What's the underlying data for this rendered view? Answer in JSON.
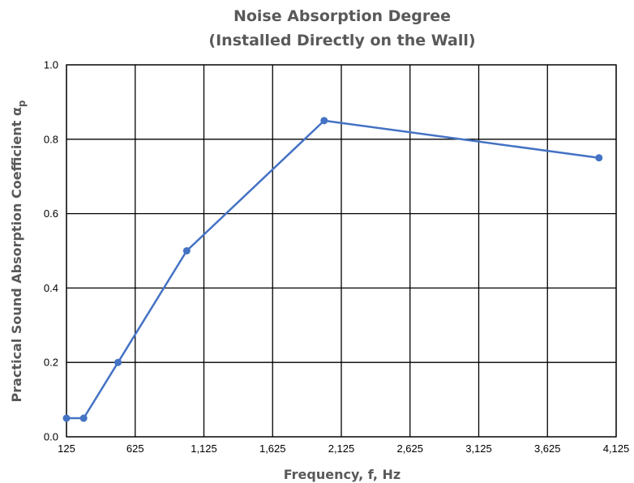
{
  "chart_data": {
    "type": "line",
    "title_line1": "Noise Absorption Degree",
    "title_line2": "(Installed Directly on the Wall)",
    "xlabel": "Frequency, f, Hz",
    "ylabel_main": "Practical Sound Absorption Coefficient  α",
    "ylabel_sub": "p",
    "xlim": [
      125,
      4125
    ],
    "ylim": [
      0,
      1
    ],
    "x_ticks": [
      125,
      625,
      1125,
      1625,
      2125,
      2625,
      3125,
      3625,
      4125
    ],
    "x_tick_labels": [
      "125",
      "625",
      "1,125",
      "1,625",
      "2,125",
      "2,625",
      "3,125",
      "3,625",
      "4,125"
    ],
    "y_ticks": [
      0,
      0.2,
      0.4,
      0.6,
      0.8,
      1.0
    ],
    "y_tick_labels": [
      "0.0",
      "0.2",
      "0.4",
      "0.6",
      "0.8",
      "1.0"
    ],
    "grid": true,
    "legend": "none",
    "series": [
      {
        "color": "#4472C4",
        "x": [
          125,
          250,
          500,
          1000,
          2000,
          4000
        ],
        "y": [
          0.05,
          0.05,
          0.2,
          0.5,
          0.85,
          0.75
        ]
      }
    ]
  }
}
